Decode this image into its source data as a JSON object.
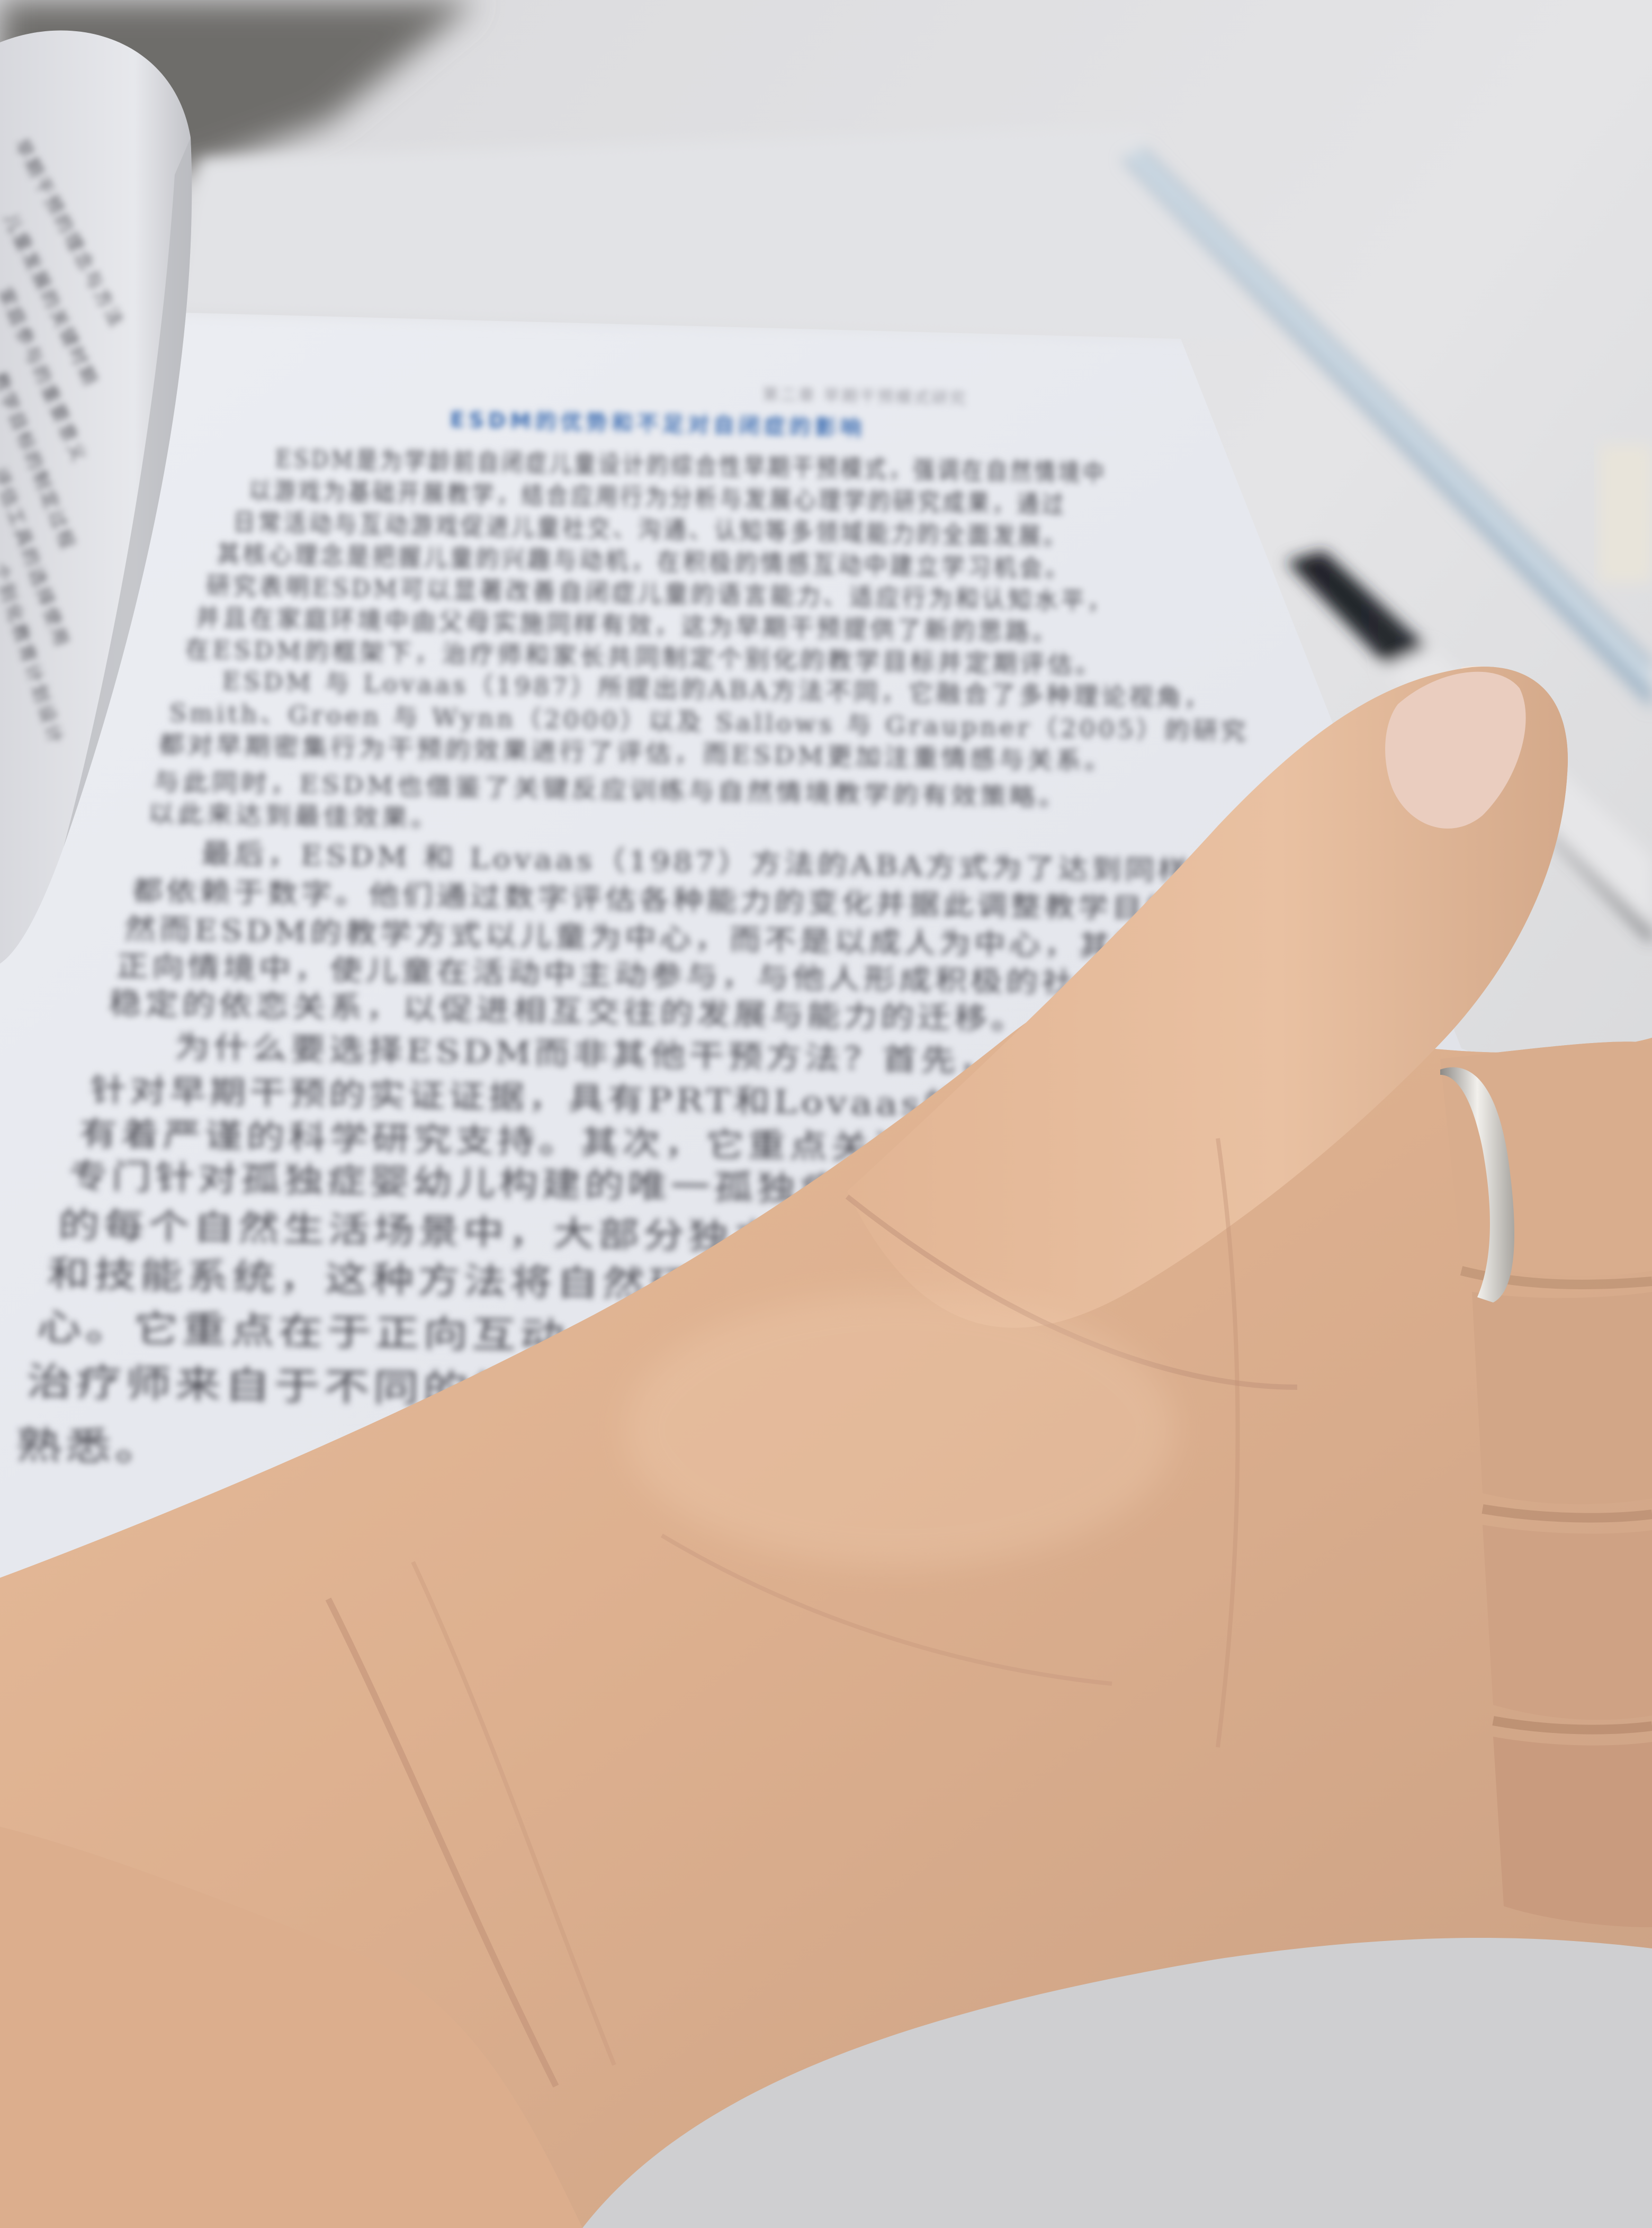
{
  "scene": {
    "page_title": "ESDM的优势和不足对自闭症的影响",
    "running_header": "第二章  早期干预模式研究",
    "paragraphs": [
      "ESDM是为学龄前自闭症儿童设计的综合性早期干预模式，强调在自然情境中",
      "以游戏为基础开展教学，结合应用行为分析与发展心理学的研究成果，通过",
      "日常活动与互动游戏促进儿童社交、沟通、认知等多领域能力的全面发展。",
      "其核心理念是把握儿童的兴趣与动机，在积极的情感互动中建立学习机会。",
      "研究表明ESDM可以显著改善自闭症儿童的语言能力、适应行为和认知水平，",
      "并且在家庭环境中由父母实施同样有效，这为早期干预提供了新的思路。",
      "在ESDM的框架下，治疗师和家长共同制定个别化的教学目标并定期评估。",
      "ESDM 与 Lovaas（1987）所提出的ABA方法不同，它融合了多种理论视角，",
      "Smith、Groen 与 Wynn（2000）以及 Sallows 与 Graupner（2005）的研究",
      "都对早期密集行为干预的效果进行了评估，而ESDM更加注重情感与关系。",
      "与此同时，ESDM也借鉴了关键反应训练与自然情境教学的有效策略。",
      "以此来达到最佳效果。",
      "最后，ESDM 和 Lovaas（1987）方法的ABA方式为了达到同样的干预目标而",
      "都依赖于数字。他们通过数字评估各种能力的变化并据此调整教学目标。",
      "然而ESDM的教学方式以儿童为中心，而不是以成人为中心，其目的是在自然",
      "正向情境中，使儿童在活动中主动参与，与他人形成积极的社会互动和",
      "稳定的依恋关系，以促进相互交往的发展与能力的迁移。",
      "为什么要选择ESDM而非其他干预方法？首先，ESDM提供了一套完整的",
      "针对早期干预的实证证据，具有PRT和Lovaas的方法与优势，",
      "有着严谨的科学研究支持。其次，它重点关注所有发育领域。",
      "专门针对孤独症婴幼儿构建的唯一孤独症干预方法。",
      "的每个自然生活场景中，大部分独立的小型教学活动",
      "和技能系统，这种方法将自然环境作为",
      "心。它重点在于正向互动，为父母",
      "治疗师来自于不同的学科领域",
      "熟悉。"
    ],
    "left_page_lines": [
      "早期干预的理念与方法",
      "儿童发展的关键时期",
      "家庭参与的重要意义",
      "教学目标的制定过程",
      "评估工具的选择使用",
      "个别化教育计划设计"
    ]
  }
}
